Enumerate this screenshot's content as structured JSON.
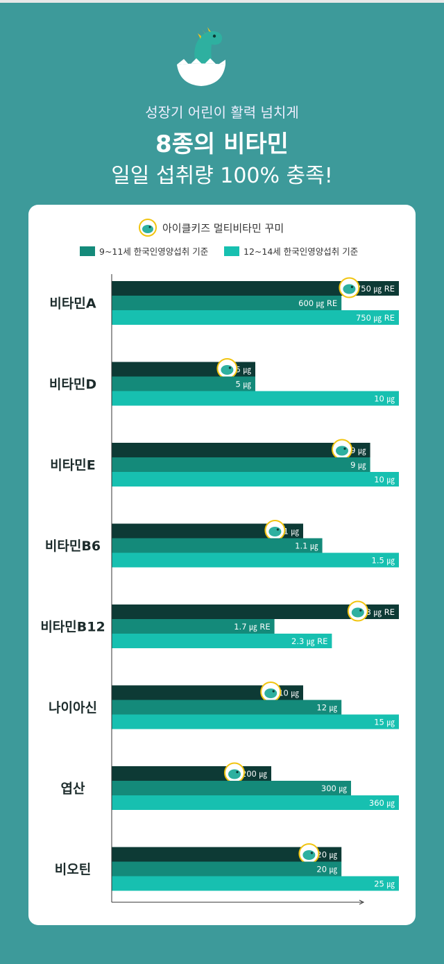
{
  "header": {
    "line1": "성장기 어린이 활력 넘치게",
    "line2": "8종의 비타민",
    "line3": "일일 섭취량 100% 충족!"
  },
  "legend": {
    "product": "아이클키즈 멀티비타민 꾸미",
    "ref1": "9~11세 한국인영양섭취 기준",
    "ref2": "12~14세 한국인영양섭취 기준"
  },
  "colors": {
    "background": "#3d9a9a",
    "product": "#0d3a35",
    "ref1": "#148a7a",
    "ref2": "#17c0b0"
  },
  "chart_data": {
    "type": "bar",
    "orientation": "horizontal",
    "categories": [
      "비타민A",
      "비타민D",
      "비타민E",
      "비타민B6",
      "비타민B12",
      "나이아신",
      "엽산",
      "비오틴"
    ],
    "series": [
      {
        "name": "아이클키즈 멀티비타민 꾸미",
        "values": [
          750,
          5,
          9,
          1,
          3,
          10,
          200,
          20
        ],
        "labels": [
          "750 ㎍ RE",
          "5 ㎍",
          "9 ㎍",
          "1 ㎍",
          "3 ㎍ RE",
          "10 ㎍",
          "200 ㎍",
          "20 ㎍"
        ]
      },
      {
        "name": "9~11세 한국인영양섭취 기준",
        "values": [
          600,
          5,
          9,
          1.1,
          1.7,
          12,
          300,
          20
        ],
        "labels": [
          "600 ㎍ RE",
          "5 ㎍",
          "9 ㎍",
          "1.1 ㎍",
          "1.7 ㎍ RE",
          "12 ㎍",
          "300 ㎍",
          "20 ㎍"
        ]
      },
      {
        "name": "12~14세 한국인영양섭취 기준",
        "values": [
          750,
          10,
          10,
          1.5,
          2.3,
          15,
          360,
          25
        ],
        "labels": [
          "750 ㎍ RE",
          "10 ㎍",
          "10 ㎍",
          "1.5 ㎍",
          "2.3 ㎍ RE",
          "15 ㎍",
          "360 ㎍",
          "25 ㎍"
        ]
      }
    ]
  }
}
